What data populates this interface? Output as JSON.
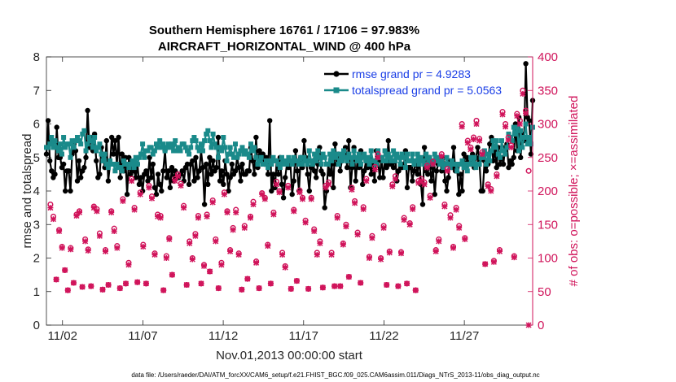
{
  "chart_data": {
    "type": "line",
    "title_line1": "Southern Hemisphere 16761 / 17106 = 97.983%",
    "title_line2": "AIRCRAFT_HORIZONTAL_WIND @ 400 hPa",
    "xlabel": "Nov.01,2013 00:00:00 start",
    "ylabel_left": "rmse and totalspread",
    "ylabel_right": "# of obs: o=possible; ×=assimilated",
    "x_range_days": [
      0,
      30.25
    ],
    "x_tick_days": [
      1,
      6,
      11,
      16,
      21,
      26
    ],
    "x_tick_labels": [
      "11/02",
      "11/07",
      "11/12",
      "11/17",
      "11/22",
      "11/27"
    ],
    "ylim_left": [
      0,
      8
    ],
    "y_ticks_left": [
      "0",
      "1",
      "2",
      "3",
      "4",
      "5",
      "6",
      "7",
      "8"
    ],
    "ylim_right": [
      0,
      400
    ],
    "y_ticks_right": [
      "0",
      "50",
      "100",
      "150",
      "200",
      "250",
      "300",
      "350",
      "400"
    ],
    "legend": [
      "rmse grand pr = 4.9283",
      "totalspread grand pr = 5.0563"
    ],
    "series": [
      {
        "name": "rmse",
        "color": "#000000",
        "axis": "left",
        "values": [
          5.1,
          6.1,
          4.9,
          4.6,
          4.4,
          4.5,
          5.9,
          5.0,
          5.0,
          4.7,
          4.8,
          4.0,
          4.6,
          4.6,
          4.0,
          5.1,
          5.4,
          5.2,
          4.3,
          4.9,
          4.4,
          4.6,
          4.7,
          5.0,
          6.4,
          5.3,
          5.6,
          5.2,
          5.7,
          4.9,
          4.4,
          4.5,
          5.3,
          5.0,
          4.7,
          5.5,
          4.3,
          4.8,
          5.6,
          5.1,
          5.5,
          4.8,
          5.6,
          4.4,
          5.1,
          4.6,
          5.0,
          3.9,
          5.0,
          4.5,
          4.8,
          4.6,
          4.4,
          4.8,
          4.2,
          4.4,
          4.0,
          4.5,
          4.6,
          4.3,
          5.0,
          4.4,
          4.8,
          4.1,
          3.9,
          4.5,
          4.2,
          4.0,
          4.6,
          5.2,
          4.4,
          4.6,
          4.1,
          4.7,
          4.3,
          4.6,
          4.4,
          4.4,
          4.5,
          4.6,
          4.3,
          4.7,
          4.8,
          4.2,
          4.8,
          4.9,
          4.3,
          5.0,
          4.4,
          4.6,
          5.2,
          4.7,
          3.6,
          4.8,
          4.2,
          5.0,
          4.5,
          4.9,
          4.6,
          4.7,
          5.6,
          4.3,
          4.6,
          4.2,
          4.9,
          4.5,
          4.0,
          4.4,
          4.8,
          4.5,
          4.6,
          5.0,
          4.7,
          4.3,
          4.8,
          4.5,
          4.5,
          4.6,
          4.6,
          5.3,
          4.9,
          4.5,
          5.6,
          4.7,
          5.2,
          4.9,
          5.1,
          4.8,
          5.0,
          4.5,
          6.1,
          4.0,
          4.5,
          4.1,
          4.9,
          4.5,
          5.0,
          4.2,
          3.8,
          4.4,
          4.8,
          4.7,
          4.8,
          3.9,
          4.3,
          5.2,
          4.6,
          4.0,
          5.0,
          4.7,
          5.5,
          5.0,
          4.5,
          4.0,
          4.7,
          4.9,
          4.6,
          4.4,
          4.8,
          5.3,
          4.6,
          4.5,
          3.5,
          4.0,
          4.8,
          4.5,
          4.8,
          4.1,
          5.4,
          4.8,
          5.1,
          4.6,
          4.9,
          5.1,
          5.3,
          4.7,
          5.5,
          4.1,
          4.7,
          5.3,
          4.3,
          4.9,
          4.7,
          5.2,
          4.2,
          4.6,
          4.9,
          4.7,
          5.0,
          4.5,
          4.8,
          4.3,
          5.2,
          4.9,
          4.4,
          5.0,
          4.4,
          4.9,
          4.7,
          5.5,
          4.8,
          4.9,
          4.7,
          5.1,
          4.3,
          4.6,
          5.0,
          4.7,
          4.8,
          5.2,
          4.1,
          4.7,
          4.7,
          4.3,
          4.6,
          4.9,
          4.5,
          5.0,
          4.2,
          3.6,
          5.3,
          4.6,
          4.5,
          5.0,
          4.3,
          4.7,
          3.9,
          4.6,
          4.8,
          5.0,
          4.6,
          5.0,
          4.3,
          4.0,
          4.4,
          4.9,
          4.7,
          5.3,
          4.6,
          4.7,
          3.9,
          4.5,
          4.0,
          5.1,
          4.7,
          5.0,
          4.8,
          4.8,
          5.1,
          4.7,
          5.0,
          5.3,
          4.9,
          4.0,
          4.0,
          4.9,
          4.6,
          4.8,
          5.4,
          5.6,
          4.9,
          5.2,
          4.7,
          5.3,
          4.8,
          5.0,
          4.8,
          5.3,
          5.4,
          4.7,
          4.9,
          4.8,
          5.0,
          6.0,
          5.2,
          6.2,
          5.0,
          5.7,
          5.5,
          7.8,
          6.2,
          6.1,
          5.1,
          6.7
        ]
      },
      {
        "name": "totalspread",
        "color": "#1a8a8a",
        "axis": "left",
        "values": [
          5.3,
          5.3,
          5.4,
          5.6,
          5.3,
          5.5,
          5.3,
          5.2,
          5.4,
          5.1,
          5.6,
          5.3,
          5.4,
          5.4,
          5.0,
          5.5,
          5.3,
          5.5,
          5.6,
          5.5,
          5.4,
          5.7,
          5.8,
          5.2,
          5.4,
          5.6,
          5.5,
          5.3,
          5.6,
          5.2,
          5.3,
          5.4,
          5.1,
          4.9,
          5.1,
          4.8,
          4.7,
          4.9,
          4.8,
          4.8,
          4.6,
          4.8,
          4.7,
          4.7,
          4.6,
          4.9,
          4.8,
          4.8,
          4.7,
          4.8,
          4.9,
          4.7,
          5.0,
          4.8,
          5.0,
          5.1,
          5.4,
          5.0,
          5.2,
          5.2,
          5.3,
          5.3,
          5.1,
          5.2,
          5.4,
          5.3,
          5.5,
          5.3,
          5.4,
          5.2,
          5.3,
          5.4,
          5.3,
          5.4,
          5.2,
          5.5,
          5.2,
          5.3,
          5.2,
          5.4,
          5.4,
          5.3,
          5.2,
          5.1,
          5.3,
          5.5,
          5.6,
          5.5,
          5.3,
          5.2,
          5.4,
          5.2,
          5.5,
          5.7,
          5.8,
          5.5,
          5.3,
          5.7,
          5.4,
          5.3,
          5.0,
          5.3,
          5.2,
          5.6,
          5.3,
          4.9,
          5.1,
          5.3,
          5.1,
          5.0,
          5.4,
          5.0,
          5.1,
          5.2,
          5.3,
          5.1,
          5.2,
          5.1,
          5.0,
          5.4,
          5.2,
          5.3,
          5.0,
          4.8,
          4.9,
          5.0,
          4.8,
          4.8,
          4.9,
          4.7,
          4.9,
          4.8,
          5.0,
          4.9,
          4.9,
          4.8,
          4.7,
          5.0,
          4.8,
          4.9,
          4.8,
          5.0,
          4.9,
          4.8,
          5.0,
          4.9,
          4.9,
          4.8,
          5.0,
          4.8,
          5.0,
          4.9,
          4.8,
          5.2,
          4.9,
          4.8,
          5.1,
          4.9,
          5.2,
          5.0,
          4.8,
          5.1,
          5.0,
          4.8,
          4.8,
          5.1,
          4.9,
          5.2,
          5.0,
          5.1,
          4.8,
          5.1,
          4.9,
          5.2,
          5.0,
          4.9,
          5.1,
          5.0,
          4.8,
          5.2,
          5.0,
          4.9,
          5.1,
          4.8,
          5.0,
          5.1,
          4.9,
          5.0,
          4.8,
          5.2,
          4.9,
          4.9,
          4.8,
          5.2,
          5.0,
          5.0,
          4.9,
          5.2,
          4.9,
          5.1,
          5.0,
          4.9,
          5.2,
          4.9,
          5.1,
          5.0,
          4.8,
          5.1,
          5.0,
          4.7,
          5.1,
          4.9,
          4.9,
          5.1,
          4.8,
          4.9,
          5.1,
          4.8,
          5.0,
          4.9,
          4.8,
          5.1,
          4.8,
          5.0,
          4.9,
          4.8,
          5.1,
          4.9,
          5.0,
          4.8,
          4.9,
          4.7,
          4.8,
          5.0,
          4.8,
          4.7,
          4.9,
          4.8,
          4.8,
          4.6,
          4.8,
          4.8,
          4.9,
          4.7,
          4.8,
          4.6,
          4.8,
          5.0,
          4.8,
          5.0,
          4.7,
          4.8,
          4.8,
          5.0,
          5.0,
          5.2,
          4.8,
          5.1,
          4.9,
          5.2,
          5.5,
          5.3,
          5.5,
          5.1,
          5.0,
          5.5,
          5.2,
          5.1,
          5.3,
          5.7,
          5.6,
          5.5,
          5.9,
          5.7,
          5.9,
          5.2,
          5.8,
          5.3,
          5.6,
          6.0,
          5.4,
          5.6,
          5.4,
          5.9
        ]
      },
      {
        "name": "obs possible",
        "color": "#d0135a",
        "marker": "o",
        "axis": "right",
        "values": [
          180,
          162,
          68,
          142,
          117,
          82,
          52,
          115,
          63,
          165,
          170,
          57,
          128,
          113,
          58,
          177,
          173,
          137,
          53,
          112,
          60,
          170,
          144,
          118,
          55,
          188,
          62,
          93,
          218,
          175,
          64,
          198,
          120,
          62,
          208,
          192,
          107,
          165,
          163,
          52,
          103,
          130,
          75,
          218,
          225,
          211,
          178,
          60,
          125,
          100,
          136,
          163,
          62,
          90,
          165,
          80,
          186,
          128,
          55,
          93,
          198,
          170,
          112,
          145,
          172,
          107,
          53,
          148,
          69,
          162,
          184,
          95,
          55,
          197,
          190,
          120,
          62,
          168,
          214,
          200,
          108,
          88,
          208,
          54,
          172,
          66,
          201,
          190,
          156,
          54,
          190,
          143,
          108,
          125,
          56,
          208,
          213,
          108,
          58,
          163,
          58,
          122,
          150,
          72,
          205,
          185,
          138,
          63,
          176,
          218,
          102,
          133,
          236,
          255,
          100,
          148,
          60,
          110,
          210,
          222,
          58,
          109,
          160,
          62,
          152,
          176,
          52,
          215,
          218,
          213,
          238,
          193,
          244,
          112,
          128,
          255,
          180,
          233,
          164,
          117,
          175,
          148,
          300,
          130,
          275,
          265,
          280,
          305,
          278,
          258,
          91,
          210,
          203,
          96,
          225,
          112,
          318,
          300,
          280,
          268,
          103,
          315,
          305,
          350,
          320,
          230
        ],
        "x_positions": []
      },
      {
        "name": "obs assimilated",
        "color": "#d0135a",
        "marker": "x",
        "axis": "right",
        "values": [
          175,
          158,
          68,
          140,
          115,
          82,
          52,
          113,
          63,
          163,
          168,
          57,
          125,
          111,
          58,
          175,
          170,
          133,
          53,
          110,
          60,
          168,
          140,
          115,
          55,
          185,
          62,
          90,
          215,
          172,
          64,
          195,
          117,
          62,
          205,
          189,
          105,
          162,
          160,
          52,
          100,
          128,
          75,
          215,
          222,
          208,
          175,
          60,
          122,
          98,
          133,
          160,
          62,
          88,
          162,
          80,
          183,
          125,
          55,
          90,
          195,
          168,
          110,
          142,
          168,
          105,
          53,
          145,
          69,
          160,
          180,
          93,
          55,
          195,
          188,
          118,
          62,
          165,
          210,
          198,
          105,
          86,
          205,
          54,
          170,
          66,
          198,
          188,
          153,
          54,
          188,
          140,
          105,
          122,
          56,
          205,
          210,
          105,
          58,
          160,
          58,
          120,
          147,
          72,
          202,
          182,
          135,
          63,
          173,
          215,
          100,
          130,
          232,
          250,
          98,
          145,
          60,
          108,
          207,
          218,
          58,
          107,
          157,
          62,
          150,
          173,
          52,
          212,
          215,
          210,
          235,
          190,
          240,
          110,
          125,
          252,
          177,
          230,
          160,
          115,
          172,
          145,
          296,
          128,
          272,
          262,
          277,
          300,
          275,
          255,
          91,
          207,
          200,
          94,
          222,
          110,
          314,
          296,
          276,
          265,
          101,
          312,
          300,
          345,
          316,
          0
        ]
      }
    ],
    "footer": "data file: /Users/raeder/DAI/ATM_forcXX/CAM6_setup/f.e21.FHIST_BGC.f09_025.CAM6assim.011/Diags_NTrS_2013-11/obs_diag_output.nc"
  }
}
